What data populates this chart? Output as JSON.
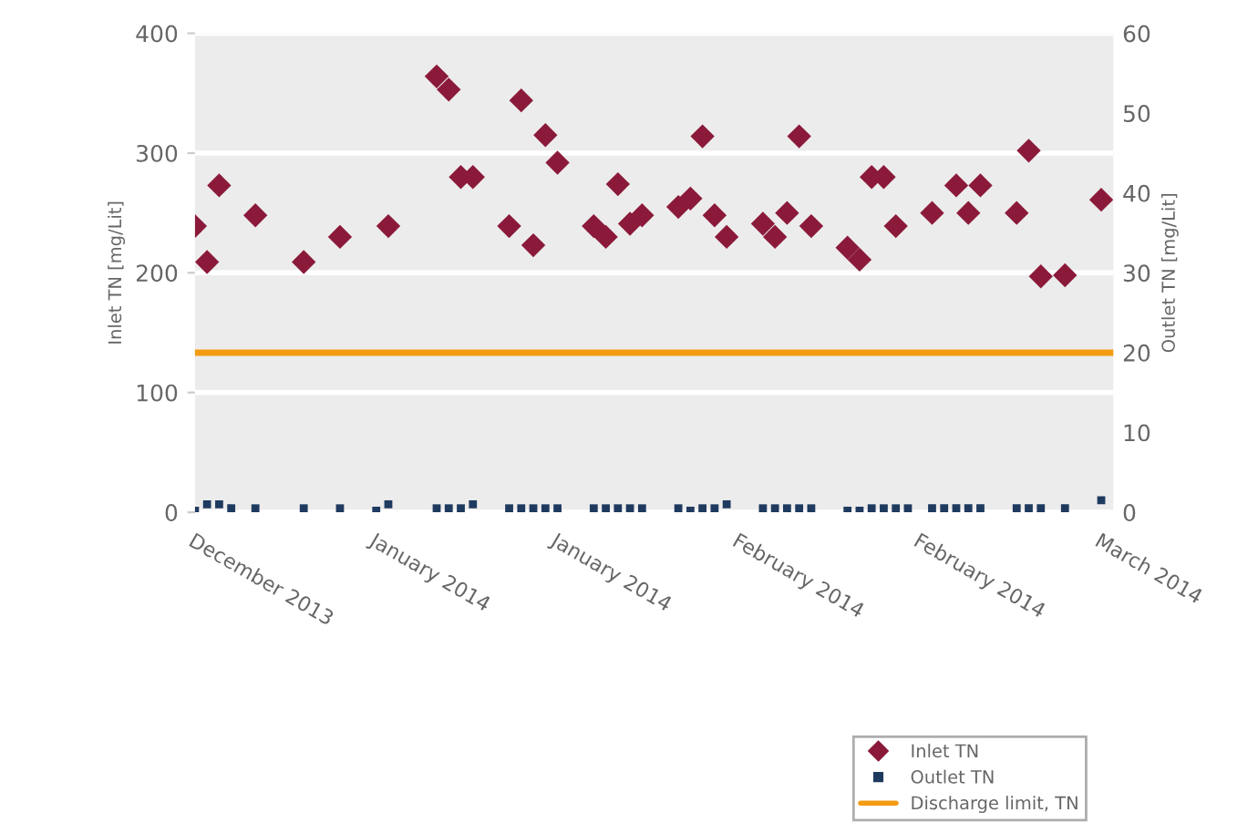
{
  "chart_data": {
    "type": "scatter",
    "ylabel": "Inlet TN [mg/Lit]",
    "y2label": "Outlet TN [mg/Lit]",
    "xlim": [
      "2013-12-20",
      "2014-03-06"
    ],
    "xticks": [
      {
        "value": "2013-12-20",
        "label": "December 2013"
      },
      {
        "value": "2014-01-04",
        "label": "January 2014"
      },
      {
        "value": "2014-01-19",
        "label": "January 2014"
      },
      {
        "value": "2014-02-03",
        "label": "February 2014"
      },
      {
        "value": "2014-02-18",
        "label": "February 2014"
      },
      {
        "value": "2014-03-05",
        "label": "March 2014"
      }
    ],
    "ylim": [
      0,
      400
    ],
    "yticks": [
      0,
      100,
      200,
      300,
      400
    ],
    "y2lim": [
      0,
      60
    ],
    "y2ticks": [
      0,
      10,
      20,
      30,
      40,
      50,
      60
    ],
    "grid": "y",
    "legend": "bottom right",
    "series": [
      {
        "name": "Inlet TN",
        "color": "#8b1a3a",
        "marker": "diamond",
        "x": [
          "2013-12-20",
          "2013-12-21",
          "2013-12-22",
          "2013-12-25",
          "2013-12-29",
          "2014-01-01",
          "2014-01-05",
          "2014-01-09",
          "2014-01-10",
          "2014-01-11",
          "2014-01-12",
          "2014-01-15",
          "2014-01-16",
          "2014-01-17",
          "2014-01-18",
          "2014-01-19",
          "2014-01-22",
          "2014-01-23",
          "2014-01-24",
          "2014-01-25",
          "2014-01-26",
          "2014-01-29",
          "2014-01-30",
          "2014-01-31",
          "2014-02-01",
          "2014-02-02",
          "2014-02-05",
          "2014-02-06",
          "2014-02-07",
          "2014-02-08",
          "2014-02-09",
          "2014-02-12",
          "2014-02-13",
          "2014-02-14",
          "2014-02-15",
          "2014-02-16",
          "2014-02-19",
          "2014-02-21",
          "2014-02-22",
          "2014-02-23",
          "2014-02-26",
          "2014-02-27",
          "2014-02-28",
          "2014-03-02",
          "2014-03-05"
        ],
        "values": [
          239,
          209,
          273,
          248,
          209,
          230,
          239,
          364,
          353,
          280,
          280,
          239,
          344,
          223,
          315,
          292,
          239,
          230,
          274,
          241,
          248,
          255,
          262,
          314,
          248,
          230,
          241,
          230,
          250,
          314,
          239,
          221,
          211,
          280,
          280,
          239,
          250,
          273,
          250,
          273,
          250,
          302,
          197,
          198,
          261
        ]
      },
      {
        "name": "Outlet TN",
        "color": "#1f3a5f",
        "marker": "square",
        "axis": "y2",
        "x": [
          "2013-12-20",
          "2013-12-21",
          "2013-12-22",
          "2013-12-23",
          "2013-12-25",
          "2013-12-29",
          "2014-01-01",
          "2014-01-04",
          "2014-01-05",
          "2014-01-09",
          "2014-01-10",
          "2014-01-11",
          "2014-01-12",
          "2014-01-15",
          "2014-01-16",
          "2014-01-17",
          "2014-01-18",
          "2014-01-19",
          "2014-01-22",
          "2014-01-23",
          "2014-01-24",
          "2014-01-25",
          "2014-01-26",
          "2014-01-29",
          "2014-01-30",
          "2014-01-31",
          "2014-02-01",
          "2014-02-02",
          "2014-02-05",
          "2014-02-06",
          "2014-02-07",
          "2014-02-08",
          "2014-02-09",
          "2014-02-12",
          "2014-02-13",
          "2014-02-14",
          "2014-02-15",
          "2014-02-16",
          "2014-02-17",
          "2014-02-19",
          "2014-02-20",
          "2014-02-21",
          "2014-02-22",
          "2014-02-23",
          "2014-02-26",
          "2014-02-27",
          "2014-02-28",
          "2014-03-02",
          "2014-03-05"
        ],
        "values": [
          0.2,
          1,
          1,
          0.5,
          0.5,
          0.5,
          0.5,
          0.2,
          1,
          0.5,
          0.5,
          0.5,
          1,
          0.5,
          0.5,
          0.5,
          0.5,
          0.5,
          0.5,
          0.5,
          0.5,
          0.5,
          0.5,
          0.5,
          0.2,
          0.5,
          0.5,
          1,
          0.5,
          0.5,
          0.5,
          0.5,
          0.5,
          0.2,
          0.2,
          0.5,
          0.5,
          0.5,
          0.5,
          0.5,
          0.5,
          0.5,
          0.5,
          0.5,
          0.5,
          0.5,
          0.5,
          0.5,
          1.5
        ]
      }
    ],
    "ref_lines": [
      {
        "axis": "y2",
        "value": 20,
        "label": "Discharge limit, TN",
        "color": "#f39c12",
        "line_style": "solid"
      }
    ]
  }
}
